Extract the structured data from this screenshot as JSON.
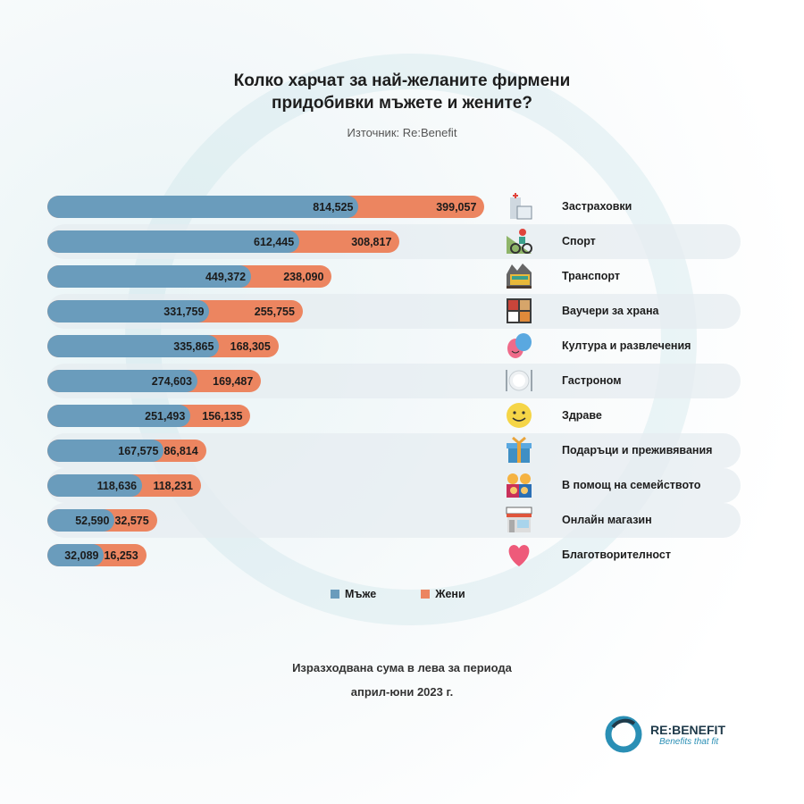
{
  "title_line1": "Колко харчат за най-желаните фирмени",
  "title_line2": "придобивки мъжете и жените?",
  "source": "Източник: Re:Benefit",
  "colors": {
    "men": "#6a9cbc",
    "women": "#ec8560"
  },
  "chart_data": {
    "type": "bar",
    "orientation": "horizontal-stacked",
    "categories": [
      "Застраховки",
      "Спорт",
      "Транспорт",
      "Ваучери за храна",
      "Култура и развлечения",
      "Гастроном",
      "Здраве",
      "Подаръци и преживявания",
      "В помощ на семейството",
      "Онлайн магазин",
      "Благотворителност"
    ],
    "icons": [
      "hospital-icon",
      "cyclist-icon",
      "train-icon",
      "bento-icon",
      "theater-masks-icon",
      "plate-cutlery-icon",
      "smiley-icon",
      "gift-icon",
      "family-icon",
      "shop-icon",
      "heart-icon"
    ],
    "series": [
      {
        "name": "Мъже",
        "values": [
          814525,
          612445,
          449372,
          331759,
          335865,
          274603,
          251493,
          167575,
          118636,
          52590,
          32089
        ],
        "labels": [
          "814,525",
          "612,445",
          "449,372",
          "331,759",
          "335,865",
          "274,603",
          "251,493",
          "167,575",
          "118,636",
          "52,590",
          "32,089"
        ]
      },
      {
        "name": "Жени",
        "values": [
          399057,
          308817,
          238090,
          255755,
          168305,
          169487,
          156135,
          86814,
          118231,
          32575,
          16253
        ],
        "labels": [
          "399,057",
          "308,817",
          "238,090",
          "255,755",
          "168,305",
          "169,487",
          "156,135",
          "86,814",
          "118,231",
          "32,575",
          "16,253"
        ]
      }
    ],
    "legend": "bottom-center",
    "xlabel": "Изразходвана сума в лева за периода",
    "xlabel_line2": "април-юни 2023 г."
  },
  "logo": {
    "name": "RE:BENEFIT",
    "tagline": "Benefits that fit"
  }
}
